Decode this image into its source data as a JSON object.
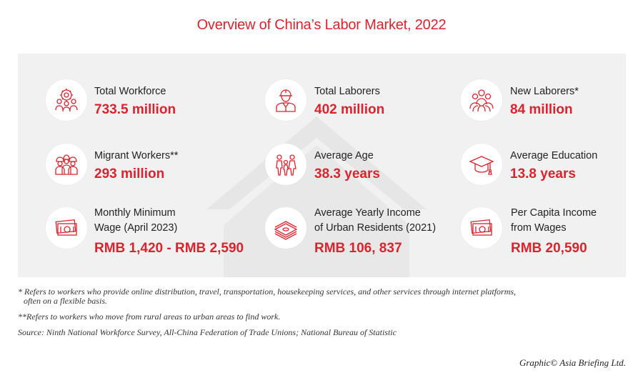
{
  "title": "Overview of China’s Labor Market, 2022",
  "colors": {
    "accent": "#d9232e",
    "panel": "#f1f1f1",
    "text": "#222222"
  },
  "stats": [
    {
      "label": "Total Workforce",
      "value": "733.5 million",
      "icon": "workforce-gear-icon"
    },
    {
      "label": "Total Laborers",
      "value": "402 million",
      "icon": "hardhat-worker-icon"
    },
    {
      "label": "New Laborers*",
      "value": "84 million",
      "icon": "group-people-icon"
    },
    {
      "label": "Migrant Workers**",
      "value": "293 million",
      "icon": "construction-workers-icon"
    },
    {
      "label": "Average Age",
      "value": "38.3 years",
      "icon": "family-icon"
    },
    {
      "label": "Average Education",
      "value": "13.8 years",
      "icon": "graduation-cap-icon"
    },
    {
      "label": "Monthly Minimum",
      "label2": "Wage (April 2023)",
      "value": "RMB 1,420 - RMB 2,590",
      "icon": "banknote-icon"
    },
    {
      "label": "Average Yearly Income",
      "label2": "of Urban Residents (2021)",
      "value": "RMB 106, 837",
      "icon": "money-stack-icon"
    },
    {
      "label": "Per Capita Income",
      "label2": "from Wages",
      "value": "RMB 20,590",
      "icon": "banknote-icon"
    }
  ],
  "footnotes": {
    "note1_line1": "* Refers to workers who provide online distribution, travel, transportation, housekeeping services, and other services through internet platforms,",
    "note1_line2": "often on a flexible basis.",
    "note2": "**Refers to workers who move from rural areas to urban areas to find work.",
    "source": "Source: Ninth National Workforce Survey, All-China Federation of Trade Unions; National Bureau of Statistic"
  },
  "credit": "Graphic© Asia Briefing Ltd."
}
